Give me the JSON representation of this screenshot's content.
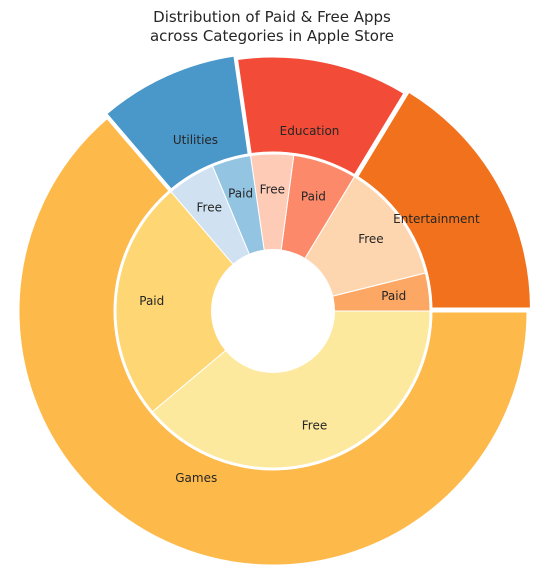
{
  "chart_data": {
    "type": "pie",
    "title_lines": [
      "Distribution of Paid & Free Apps",
      "across Categories in Apple Store"
    ],
    "outer": [
      {
        "label": "Entertainment",
        "value": 0.1633,
        "color": "#f2711c"
      },
      {
        "label": "Education",
        "value": 0.1096,
        "color": "#f24b37"
      },
      {
        "label": "Utilities",
        "value": 0.0898,
        "color": "#4a97c9"
      },
      {
        "label": "Games",
        "value": 0.6373,
        "color": "#fdb94a"
      }
    ],
    "inner": [
      {
        "label": "Paid",
        "category": "Entertainment",
        "value": 0.0389,
        "color": "#fda765"
      },
      {
        "label": "Free",
        "category": "Entertainment",
        "value": 0.1244,
        "color": "#fdd6b0"
      },
      {
        "label": "Paid",
        "category": "Education",
        "value": 0.0656,
        "color": "#fc8a6a"
      },
      {
        "label": "Free",
        "category": "Education",
        "value": 0.044,
        "color": "#fdcbb6"
      },
      {
        "label": "Paid",
        "category": "Utilities",
        "value": 0.04,
        "color": "#93c4e1"
      },
      {
        "label": "Free",
        "category": "Utilities",
        "value": 0.0498,
        "color": "#d0e2f2"
      },
      {
        "label": "Paid",
        "category": "Games",
        "value": 0.2481,
        "color": "#fed674"
      },
      {
        "label": "Free",
        "category": "Games",
        "value": 0.3892,
        "color": "#fde99e"
      }
    ],
    "explode": {
      "Entertainment": true,
      "Utilities": true
    }
  }
}
